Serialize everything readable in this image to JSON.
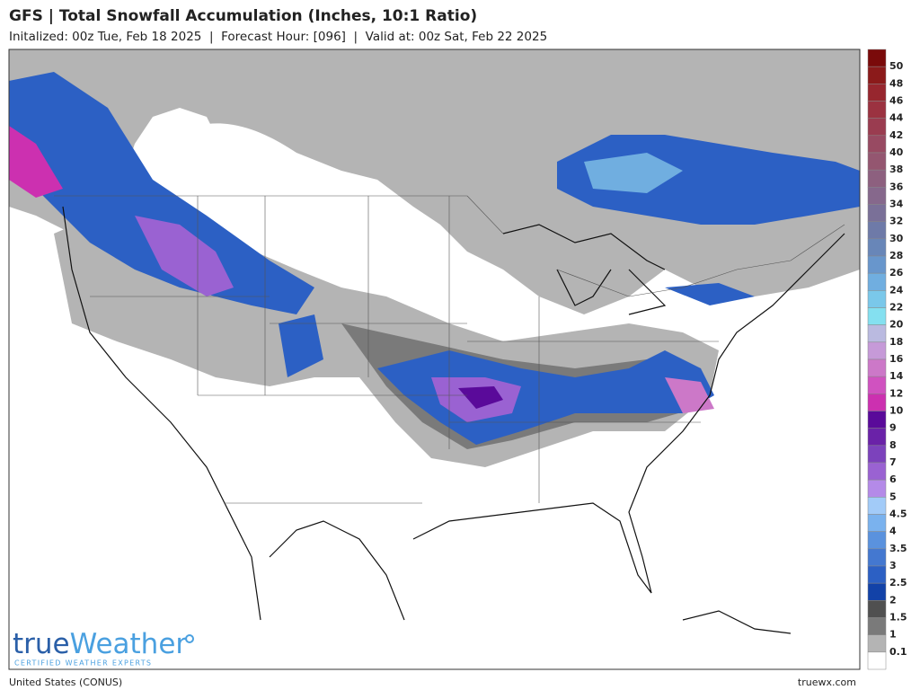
{
  "header": {
    "title": "GFS | Total Snowfall Accumulation (Inches, 10:1 Ratio)",
    "subtitle": "Initalized: 00z Tue, Feb 18 2025  |  Forecast Hour: [096]  |  Valid at: 00z Sat, Feb 22 2025"
  },
  "legend": {
    "labels": [
      50,
      48,
      46,
      44,
      42,
      40,
      38,
      36,
      34,
      32,
      30,
      28,
      26,
      24,
      22,
      20,
      18,
      16,
      14,
      12,
      10,
      9,
      8,
      7,
      6,
      5,
      4.5,
      4,
      3.5,
      3,
      2.5,
      2,
      1.5,
      1,
      0.1
    ],
    "colors": [
      "#7a0a0a",
      "#8b1a1a",
      "#97262e",
      "#9b3240",
      "#9a3c50",
      "#984a62",
      "#945670",
      "#8d607f",
      "#86688c",
      "#7a7098",
      "#6e7aa8",
      "#6886b8",
      "#6896cc",
      "#70aee0",
      "#7ac8ea",
      "#84e0f0",
      "#babae0",
      "#c69ad8",
      "#cc78c8",
      "#d052c0",
      "#cc30b0",
      "#5a0a9a",
      "#6a22a8",
      "#7c42bc",
      "#9a62d2",
      "#b48ae8",
      "#a2cbf8",
      "#7ab2ee",
      "#5a92de",
      "#4478d0",
      "#2c60c4",
      "#1242a8",
      "#505050",
      "#7a7a7a",
      "#b4b4b4",
      "#ffffff"
    ]
  },
  "logo": {
    "part1": "true",
    "part2": "Weather",
    "tagline": "CERTIFIED WEATHER EXPERTS"
  },
  "footer": {
    "region": "United States (CONUS)",
    "site": "truewx.com"
  }
}
